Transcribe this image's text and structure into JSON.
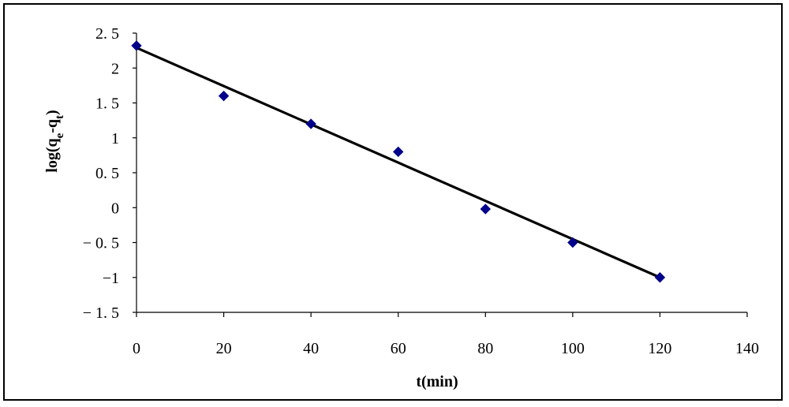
{
  "chart_data": {
    "type": "scatter",
    "x": [
      0,
      20,
      40,
      60,
      80,
      100,
      120
    ],
    "y": [
      2.32,
      1.6,
      1.2,
      0.8,
      -0.02,
      -0.5,
      -1.0
    ],
    "series": [
      {
        "name": "",
        "x": [
          0,
          20,
          40,
          60,
          80,
          100,
          120
        ],
        "y": [
          2.32,
          1.6,
          1.2,
          0.8,
          -0.02,
          -0.5,
          -1.0
        ],
        "marker": "diamond",
        "color": "#00008B"
      }
    ],
    "trendline": {
      "x": [
        0,
        120
      ],
      "y": [
        2.29,
        -1.0
      ],
      "color": "#000000"
    },
    "title": "",
    "xlabel": "t(min)",
    "ylabel": {
      "prefix": "log(q",
      "sub1": "e",
      "mid": "-q",
      "sub2": "t",
      "suffix": ")"
    },
    "xlim": [
      0,
      140
    ],
    "ylim": [
      -1.5,
      2.5
    ],
    "xticks": [
      0,
      20,
      40,
      60,
      80,
      100,
      120,
      140
    ],
    "xtick_labels": [
      "0",
      "20",
      "40",
      "60",
      "80",
      "100",
      "120",
      "140"
    ],
    "yticks": [
      2.5,
      2,
      1.5,
      1,
      0.5,
      0,
      -0.5,
      -1,
      -1.5
    ],
    "ytick_labels": [
      "2. 5",
      "2",
      "1. 5",
      "1",
      "0. 5",
      "0",
      "− 0. 5",
      "−1",
      "− 1. 5"
    ],
    "grid": false,
    "legend": "none"
  }
}
